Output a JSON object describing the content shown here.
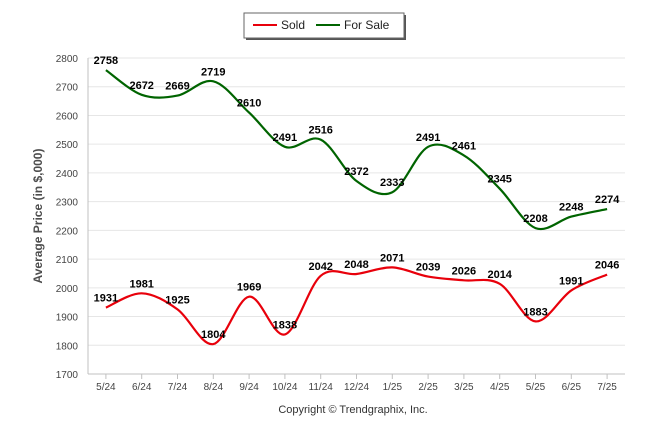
{
  "chart_data": {
    "type": "line",
    "categories": [
      "5/24",
      "6/24",
      "7/24",
      "8/24",
      "9/24",
      "10/24",
      "11/24",
      "12/24",
      "1/25",
      "2/25",
      "3/25",
      "4/25",
      "5/25",
      "6/25",
      "7/25"
    ],
    "series": [
      {
        "name": "Sold",
        "color": "#e8000b",
        "values": [
          1931,
          1981,
          1925,
          1804,
          1969,
          1838,
          2042,
          2048,
          2071,
          2039,
          2026,
          2014,
          1883,
          1991,
          2046
        ],
        "labels": [
          "1931",
          "1981",
          "1925",
          "1804",
          "1969",
          "1838",
          "2042",
          "2048",
          "2071",
          "2039",
          "2026",
          "2014",
          "1883",
          "1991",
          "2046"
        ]
      },
      {
        "name": "For Sale",
        "color": "#006400",
        "values": [
          2758,
          2672,
          2669,
          2719,
          2610,
          2491,
          2516,
          2372,
          2333,
          2491,
          2461,
          2345,
          2208,
          2248,
          2274
        ],
        "labels": [
          "2758",
          "2672",
          "2669",
          "2719",
          "2610",
          "2491",
          "2516",
          "2372",
          "2333",
          "2491",
          "2461",
          "2345",
          "2208",
          "2248",
          "2274"
        ]
      }
    ],
    "ylabel": "Average Price (in $,000)",
    "ylim": [
      1700,
      2800
    ],
    "yticks": [
      "1700",
      "1800",
      "1900",
      "2000",
      "2100",
      "2200",
      "2300",
      "2400",
      "2500",
      "2600",
      "2700",
      "2800"
    ],
    "grid": true,
    "legend": "top-center",
    "credit": "Copyright © Trendgraphix, Inc."
  }
}
